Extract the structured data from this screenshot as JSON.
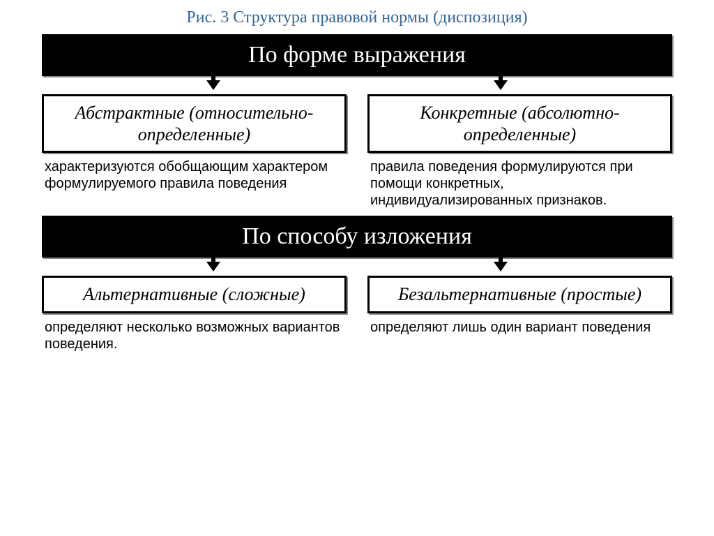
{
  "title": "Рис. 3 Структура правовой нормы (диспозиция)",
  "section1": {
    "header": "По форме выражения",
    "left": {
      "box": "Абстрактные (относительно-определенные)",
      "desc": "характеризуются обобщающим характером формулируемого правила поведения"
    },
    "right": {
      "box": "Конкретные (абсолютно-определенные)",
      "desc": "правила поведения формулируются при помощи конкретных, индивидуализированных признаков."
    }
  },
  "section2": {
    "header": "По способу изложения",
    "left": {
      "box": "Альтернативные (сложные)",
      "desc": "определяют несколько возможных вариантов поведения."
    },
    "right": {
      "box": "Безальтернативные (простые)",
      "desc": "определяют лишь один вариант поведения"
    }
  },
  "style": {
    "type": "flowchart",
    "title_color": "#336699",
    "header_bg": "#000000",
    "header_fg": "#ffffff",
    "box_border": "#000000",
    "box_bg": "#ffffff",
    "shadow_color": "#888888",
    "title_fontsize": 24,
    "header_fontsize": 34,
    "box_fontsize": 26,
    "desc_fontsize": 20,
    "box_font_style": "italic",
    "desc_font_family": "Arial"
  }
}
